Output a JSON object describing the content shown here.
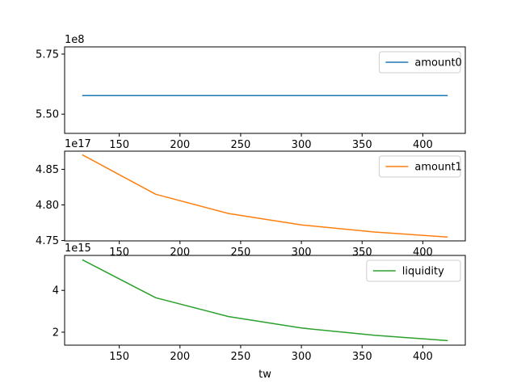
{
  "chart_data": [
    {
      "type": "line",
      "x": [
        120,
        180,
        240,
        300,
        360,
        420
      ],
      "series": [
        {
          "name": "amount0",
          "values": [
            557700000,
            557700000,
            557700000,
            557700000,
            557700000,
            557700000
          ],
          "color": "#1f77b4"
        }
      ],
      "xlim": [
        105,
        435
      ],
      "ylim": [
        542000000,
        578000000
      ],
      "xticks": [
        150,
        200,
        250,
        300,
        350,
        400
      ],
      "yticks": [
        5.5,
        5.75
      ],
      "ytick_labels": [
        "5.50",
        "5.75"
      ],
      "offset_text": "1e8",
      "legend": "top-right",
      "xlabel": ""
    },
    {
      "type": "line",
      "x": [
        120,
        180,
        240,
        300,
        360,
        420
      ],
      "series": [
        {
          "name": "amount1",
          "values": [
            4.87e+17,
            4.815e+17,
            4.788e+17,
            4.772e+17,
            4.762e+17,
            4.755e+17
          ],
          "color": "#ff7f0e"
        }
      ],
      "xlim": [
        105,
        435
      ],
      "ylim": [
        4.7495e+17,
        4.8755e+17
      ],
      "xticks": [
        150,
        200,
        250,
        300,
        350,
        400
      ],
      "yticks": [
        4.75,
        4.8,
        4.85
      ],
      "ytick_labels": [
        "4.75",
        "4.80",
        "4.85"
      ],
      "offset_text": "1e17",
      "legend": "top-right",
      "xlabel": ""
    },
    {
      "type": "line",
      "x": [
        120,
        180,
        240,
        300,
        360,
        420
      ],
      "series": [
        {
          "name": "liquidity",
          "values": [
            5450000000000000.0,
            3650000000000000.0,
            2750000000000000.0,
            2200000000000000.0,
            1850000000000000.0,
            1600000000000000.0
          ],
          "color": "#2ca02c"
        }
      ],
      "xlim": [
        105,
        435
      ],
      "ylim": [
        1380000000000000.0,
        5670000000000000.0
      ],
      "xticks": [
        150,
        200,
        250,
        300,
        350,
        400
      ],
      "yticks": [
        2,
        4
      ],
      "ytick_labels": [
        "2",
        "4"
      ],
      "offset_text": "1e15",
      "legend": "top-right",
      "xlabel": "tw"
    }
  ]
}
